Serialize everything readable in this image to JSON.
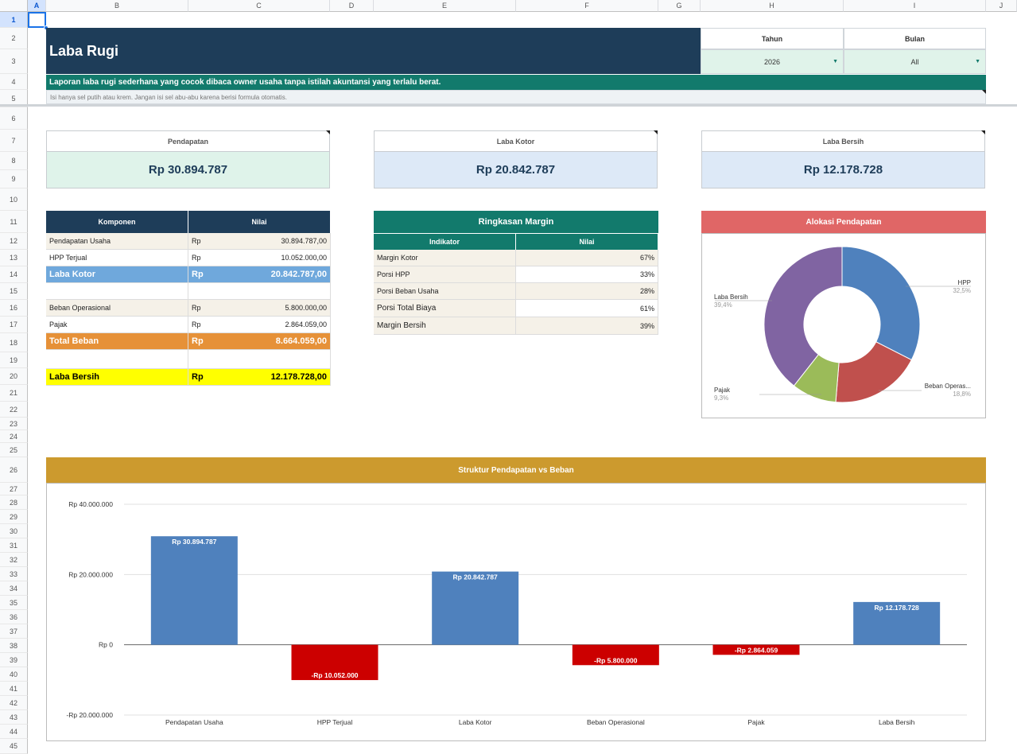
{
  "sheet": {
    "columns": [
      "A",
      "B",
      "C",
      "D",
      "E",
      "F",
      "G",
      "H",
      "I",
      "J"
    ],
    "rows": [
      "1",
      "2",
      "3",
      "4",
      "5",
      "6",
      "7",
      "8",
      "9",
      "10",
      "11",
      "12",
      "13",
      "14",
      "15",
      "16",
      "17",
      "18",
      "19",
      "20",
      "21",
      "22",
      "23",
      "24",
      "25",
      "26",
      "27",
      "28",
      "29",
      "30",
      "31",
      "32",
      "33",
      "34",
      "35",
      "36",
      "37",
      "38",
      "39",
      "40",
      "41",
      "42",
      "43",
      "44",
      "45"
    ]
  },
  "header": {
    "title": "Laba Rugi",
    "description": "Laporan laba rugi sederhana yang cocok dibaca owner usaha tanpa istilah akuntansi yang terlalu berat.",
    "note": "Isi hanya sel putih atau krem. Jangan isi sel abu-abu karena berisi formula otomatis."
  },
  "filters": {
    "year_label": "Tahun",
    "year_value": "2026",
    "month_label": "Bulan",
    "month_value": "All"
  },
  "kpis": [
    {
      "label": "Pendapatan",
      "value": "Rp 30.894.787",
      "bg": "#dff3ea"
    },
    {
      "label": "Laba Kotor",
      "value": "Rp 20.842.787",
      "bg": "#dde9f7"
    },
    {
      "label": "Laba Bersih",
      "value": "Rp 12.178.728",
      "bg": "#dde9f7"
    }
  ],
  "components": {
    "headers": [
      "Komponen",
      "Nilai"
    ],
    "rows": [
      {
        "name": "Pendapatan Usaha",
        "cur": "Rp",
        "value": "30.894.787,00",
        "style": "cream"
      },
      {
        "name": "HPP Terjual",
        "cur": "Rp",
        "value": "10.052.000,00",
        "style": "white"
      },
      {
        "name": "Laba Kotor",
        "cur": "Rp",
        "value": "20.842.787,00",
        "style": "blue"
      },
      {
        "name": "",
        "cur": "",
        "value": "",
        "style": "white"
      },
      {
        "name": "Beban Operasional",
        "cur": "Rp",
        "value": "5.800.000,00",
        "style": "cream"
      },
      {
        "name": "Pajak",
        "cur": "Rp",
        "value": "2.864.059,00",
        "style": "white"
      },
      {
        "name": "Total Beban",
        "cur": "Rp",
        "value": "8.664.059,00",
        "style": "orange"
      },
      {
        "name": "",
        "cur": "",
        "value": "",
        "style": "white"
      },
      {
        "name": "Laba Bersih",
        "cur": "Rp",
        "value": "12.178.728,00",
        "style": "yellow"
      }
    ]
  },
  "margin": {
    "title": "Ringkasan Margin",
    "headers": [
      "Indikator",
      "Nilai"
    ],
    "rows": [
      {
        "name": "Margin Kotor",
        "value": "67%"
      },
      {
        "name": "Porsi HPP",
        "value": "33%"
      },
      {
        "name": "Porsi Beban Usaha",
        "value": "28%"
      },
      {
        "name": "Porsi Total Biaya",
        "value": "61%"
      },
      {
        "name": "Margin Bersih",
        "value": "39%"
      }
    ]
  },
  "pie": {
    "title": "Alokasi Pendapatan",
    "labels": {
      "hpp": "HPP",
      "hpp_pct": "32,5%",
      "beban": "Beban Operas...",
      "beban_pct": "18,8%",
      "pajak": "Pajak",
      "pajak_pct": "9,3%",
      "laba": "Laba Bersih",
      "laba_pct": "39,4%"
    }
  },
  "bar": {
    "title": "Struktur Pendapatan vs Beban"
  },
  "chart_data": [
    {
      "type": "pie",
      "title": "Alokasi Pendapatan",
      "categories": [
        "HPP",
        "Beban Operas...",
        "Pajak",
        "Laba Bersih"
      ],
      "values": [
        32.5,
        18.8,
        9.3,
        39.4
      ],
      "colors": [
        "#4f81bd",
        "#c0504d",
        "#9bbb59",
        "#8064a2"
      ],
      "donut": true
    },
    {
      "type": "bar",
      "title": "Struktur Pendapatan vs Beban",
      "categories": [
        "Pendapatan Usaha",
        "HPP Terjual",
        "Laba Kotor",
        "Beban Operasional",
        "Pajak",
        "Laba Bersih"
      ],
      "values": [
        30894787,
        -10052000,
        20842787,
        -5800000,
        -2864059,
        12178728
      ],
      "data_labels": [
        "Rp 30.894.787",
        "-Rp 10.052.000",
        "Rp 20.842.787",
        "-Rp 5.800.000",
        "-Rp 2.864.059",
        "Rp 12.178.728"
      ],
      "positive_color": "#4f81bd",
      "negative_color": "#cc0000",
      "y_ticks": [
        "Rp 40.000.000",
        "Rp 20.000.000",
        "Rp 0",
        "-Rp 20.000.000"
      ],
      "ylim": [
        -20000000,
        40000000
      ],
      "grid": true
    }
  ]
}
